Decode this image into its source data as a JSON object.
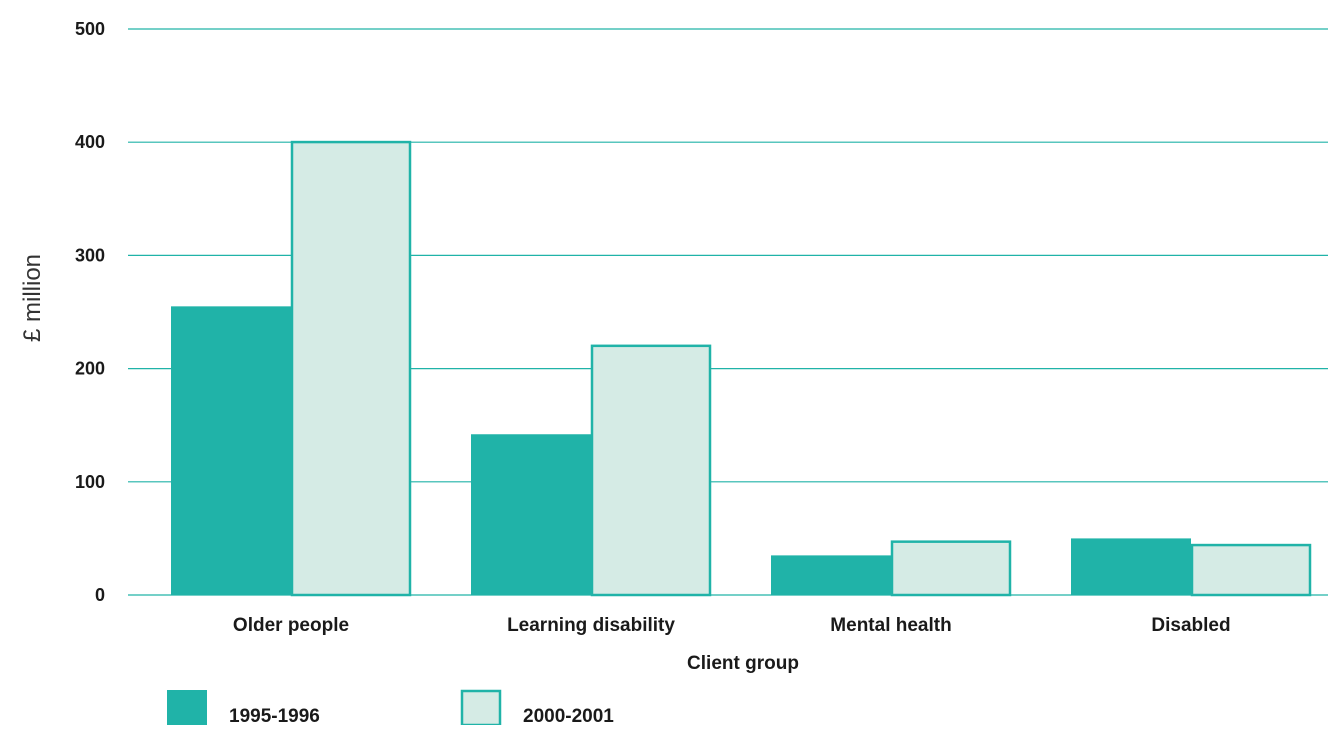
{
  "chart_data": {
    "type": "bar",
    "title": "",
    "xlabel": "Client group",
    "ylabel": "£ million",
    "ylim": [
      0,
      500
    ],
    "yticks": [
      0,
      100,
      200,
      300,
      400,
      500
    ],
    "grid": true,
    "legend_position": "bottom-left",
    "categories": [
      "Older people",
      "Learning disability",
      "Mental health",
      "Disabled"
    ],
    "series": [
      {
        "name": "1995-1996",
        "values": [
          255,
          142,
          35,
          50
        ],
        "color": "#20b3a8",
        "outline": "none"
      },
      {
        "name": "2000-2001",
        "values": [
          401,
          221,
          48,
          45
        ],
        "color": "#d5ebe5",
        "outline": "#20b3a8"
      }
    ]
  },
  "colors": {
    "grid": "#20b3a8",
    "text": "#1a1a1a"
  }
}
